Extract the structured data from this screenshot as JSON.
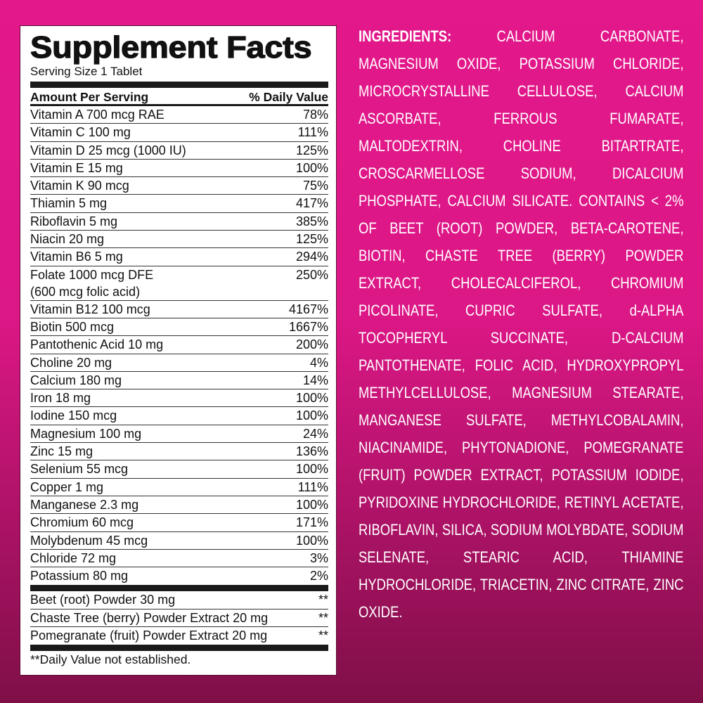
{
  "facts": {
    "title": "Supplement Facts",
    "serving": "Serving Size 1 Tablet",
    "header_left": "Amount Per Serving",
    "header_right": "% Daily Value",
    "nutrients": [
      {
        "name": "Vitamin A 700 mcg RAE",
        "dv": "78%"
      },
      {
        "name": "Vitamin C 100 mg",
        "dv": "111%"
      },
      {
        "name": "Vitamin D 25 mcg (1000 IU)",
        "dv": "125%"
      },
      {
        "name": "Vitamin E 15 mg",
        "dv": "100%"
      },
      {
        "name": "Vitamin K 90 mcg",
        "dv": "75%"
      },
      {
        "name": "Thiamin 5 mg",
        "dv": "417%"
      },
      {
        "name": "Riboflavin 5 mg",
        "dv": "385%"
      },
      {
        "name": "Niacin 20 mg",
        "dv": "125%"
      },
      {
        "name": "Vitamin B6 5 mg",
        "dv": "294%"
      },
      {
        "name": "Folate 1000 mcg DFE\n   (600 mcg folic acid)",
        "dv": "250%"
      },
      {
        "name": "Vitamin B12 100 mcg",
        "dv": "4167%"
      },
      {
        "name": "Biotin 500 mcg",
        "dv": "1667%"
      },
      {
        "name": "Pantothenic Acid 10 mg",
        "dv": "200%"
      },
      {
        "name": "Choline 20 mg",
        "dv": "4%"
      },
      {
        "name": "Calcium 180 mg",
        "dv": "14%"
      },
      {
        "name": "Iron 18 mg",
        "dv": "100%"
      },
      {
        "name": "Iodine 150 mcg",
        "dv": "100%"
      },
      {
        "name": "Magnesium 100 mg",
        "dv": "24%"
      },
      {
        "name": "Zinc 15 mg",
        "dv": "136%"
      },
      {
        "name": "Selenium 55 mcg",
        "dv": "100%"
      },
      {
        "name": "Copper 1 mg",
        "dv": "111%"
      },
      {
        "name": "Manganese 2.3 mg",
        "dv": "100%"
      },
      {
        "name": "Chromium 60 mcg",
        "dv": "171%"
      },
      {
        "name": "Molybdenum 45 mcg",
        "dv": "100%"
      },
      {
        "name": "Chloride 72 mg",
        "dv": "3%"
      },
      {
        "name": "Potassium 80 mg",
        "dv": "2%"
      }
    ],
    "others": [
      {
        "name": "Beet (root) Powder 30 mg",
        "dv": "**"
      },
      {
        "name": "Chaste Tree (berry) Powder Extract 20 mg",
        "dv": "**"
      },
      {
        "name": "Pomegranate (fruit) Powder Extract 20 mg",
        "dv": "**"
      }
    ],
    "footnote": "**Daily Value not established."
  },
  "ingredients": {
    "label": "INGREDIENTS:",
    "text": "CALCIUM CARBONATE, MAGNESIUM OXIDE, POTASSIUM CHLORIDE, MICROCRYSTALLINE CELLULOSE, CALCIUM ASCORBATE, FERROUS FUMARATE, MALTODEXTRIN, CHOLINE BITARTRATE, CROSCARMELLOSE SODIUM, DICALCIUM PHOSPHATE, CALCIUM SILICATE. CONTAINS < 2% OF BEET (ROOT) POWDER, BETA-CAROTENE, BIOTIN, CHASTE TREE (BERRY) POWDER EXTRACT, CHOLECALCIFEROL, CHROMIUM PICOLINATE, CUPRIC SULFATE, d-ALPHA TOCOPHERYL SUCCINATE, D-CALCIUM PANTOTHENATE, FOLIC ACID, HYDROXYPROPYL METHYLCELLULOSE, MAGNESIUM STEARATE, MANGANESE SULFATE, METHYLCOBALAMIN, NIACINAMIDE, PHYTONADIONE, POMEGRANATE (FRUIT) POWDER EXTRACT, POTASSIUM IODIDE, PYRIDOXINE HYDROCHLORIDE, RETINYL ACETATE, RIBOFLAVIN, SILICA, SODIUM MOLYBDATE, SODIUM SELENATE, STEARIC ACID, THIAMINE HYDROCHLORIDE, TRIACETIN, ZINC CITRATE, ZINC OXIDE."
  },
  "colors": {
    "background_top": "#e3188b",
    "background_bottom": "#7f0f47",
    "panel": "#ffffff",
    "text": "#111111"
  }
}
